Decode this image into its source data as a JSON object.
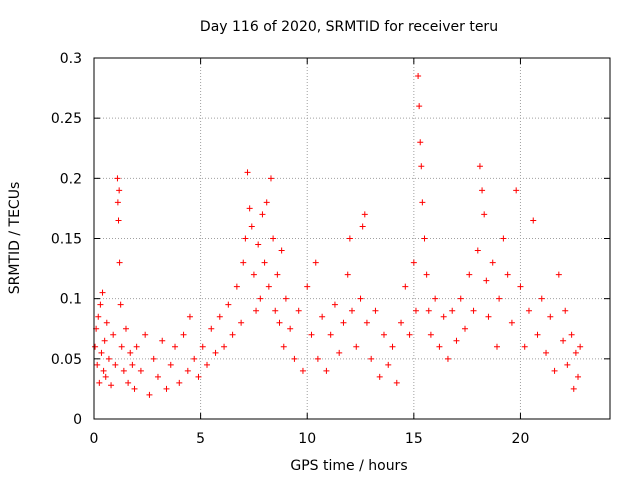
{
  "chart_data": {
    "type": "scatter",
    "title": "Day 116 of 2020, SRMTID for receiver teru",
    "xlabel": "GPS time / hours",
    "ylabel": "SRMTID / TECUs",
    "xlim": [
      0,
      24.2
    ],
    "ylim": [
      0,
      0.3
    ],
    "x_ticks": [
      0,
      5,
      10,
      15,
      20
    ],
    "x_tick_labels": [
      "0",
      "5",
      "10",
      "15",
      "20"
    ],
    "y_ticks": [
      0,
      0.05,
      0.1,
      0.15,
      0.2,
      0.25,
      0.3
    ],
    "y_tick_labels": [
      "0",
      "0.05",
      "0.1",
      "0.15",
      "0.2",
      "0.25",
      "0.3"
    ],
    "grid": true,
    "marker": "+",
    "color": "#ff0000",
    "series": [
      {
        "name": "SRMTID",
        "points": [
          [
            0.05,
            0.06
          ],
          [
            0.1,
            0.075
          ],
          [
            0.15,
            0.045
          ],
          [
            0.2,
            0.085
          ],
          [
            0.25,
            0.03
          ],
          [
            0.3,
            0.095
          ],
          [
            0.35,
            0.055
          ],
          [
            0.4,
            0.105
          ],
          [
            0.45,
            0.04
          ],
          [
            0.5,
            0.065
          ],
          [
            0.55,
            0.035
          ],
          [
            0.6,
            0.08
          ],
          [
            0.7,
            0.05
          ],
          [
            0.8,
            0.028
          ],
          [
            0.9,
            0.07
          ],
          [
            1.0,
            0.045
          ],
          [
            1.1,
            0.2
          ],
          [
            1.12,
            0.18
          ],
          [
            1.15,
            0.165
          ],
          [
            1.18,
            0.19
          ],
          [
            1.2,
            0.13
          ],
          [
            1.25,
            0.095
          ],
          [
            1.3,
            0.06
          ],
          [
            1.4,
            0.04
          ],
          [
            1.5,
            0.075
          ],
          [
            1.6,
            0.03
          ],
          [
            1.7,
            0.055
          ],
          [
            1.8,
            0.045
          ],
          [
            1.9,
            0.025
          ],
          [
            2.0,
            0.06
          ],
          [
            2.2,
            0.04
          ],
          [
            2.4,
            0.07
          ],
          [
            2.6,
            0.02
          ],
          [
            2.8,
            0.05
          ],
          [
            3.0,
            0.035
          ],
          [
            3.2,
            0.065
          ],
          [
            3.4,
            0.025
          ],
          [
            3.6,
            0.045
          ],
          [
            3.8,
            0.06
          ],
          [
            4.0,
            0.03
          ],
          [
            4.2,
            0.07
          ],
          [
            4.4,
            0.04
          ],
          [
            4.5,
            0.085
          ],
          [
            4.7,
            0.05
          ],
          [
            4.9,
            0.035
          ],
          [
            5.1,
            0.06
          ],
          [
            5.3,
            0.045
          ],
          [
            5.5,
            0.075
          ],
          [
            5.7,
            0.055
          ],
          [
            5.9,
            0.085
          ],
          [
            6.1,
            0.06
          ],
          [
            6.3,
            0.095
          ],
          [
            6.5,
            0.07
          ],
          [
            6.7,
            0.11
          ],
          [
            6.9,
            0.08
          ],
          [
            7.0,
            0.13
          ],
          [
            7.1,
            0.15
          ],
          [
            7.2,
            0.205
          ],
          [
            7.3,
            0.175
          ],
          [
            7.4,
            0.16
          ],
          [
            7.5,
            0.12
          ],
          [
            7.6,
            0.09
          ],
          [
            7.7,
            0.145
          ],
          [
            7.8,
            0.1
          ],
          [
            7.9,
            0.17
          ],
          [
            8.0,
            0.13
          ],
          [
            8.1,
            0.18
          ],
          [
            8.2,
            0.11
          ],
          [
            8.3,
            0.2
          ],
          [
            8.4,
            0.15
          ],
          [
            8.5,
            0.09
          ],
          [
            8.6,
            0.12
          ],
          [
            8.7,
            0.08
          ],
          [
            8.8,
            0.14
          ],
          [
            8.9,
            0.06
          ],
          [
            9.0,
            0.1
          ],
          [
            9.2,
            0.075
          ],
          [
            9.4,
            0.05
          ],
          [
            9.6,
            0.09
          ],
          [
            9.8,
            0.04
          ],
          [
            10.0,
            0.11
          ],
          [
            10.2,
            0.07
          ],
          [
            10.4,
            0.13
          ],
          [
            10.5,
            0.05
          ],
          [
            10.7,
            0.085
          ],
          [
            10.9,
            0.04
          ],
          [
            11.1,
            0.07
          ],
          [
            11.3,
            0.095
          ],
          [
            11.5,
            0.055
          ],
          [
            11.7,
            0.08
          ],
          [
            11.9,
            0.12
          ],
          [
            12.0,
            0.15
          ],
          [
            12.1,
            0.09
          ],
          [
            12.3,
            0.06
          ],
          [
            12.5,
            0.1
          ],
          [
            12.6,
            0.16
          ],
          [
            12.7,
            0.17
          ],
          [
            12.8,
            0.08
          ],
          [
            13.0,
            0.05
          ],
          [
            13.2,
            0.09
          ],
          [
            13.4,
            0.035
          ],
          [
            13.6,
            0.07
          ],
          [
            13.8,
            0.045
          ],
          [
            14.0,
            0.06
          ],
          [
            14.2,
            0.03
          ],
          [
            14.4,
            0.08
          ],
          [
            14.6,
            0.11
          ],
          [
            14.8,
            0.07
          ],
          [
            15.0,
            0.13
          ],
          [
            15.1,
            0.09
          ],
          [
            15.2,
            0.285
          ],
          [
            15.25,
            0.26
          ],
          [
            15.3,
            0.23
          ],
          [
            15.35,
            0.21
          ],
          [
            15.4,
            0.18
          ],
          [
            15.5,
            0.15
          ],
          [
            15.6,
            0.12
          ],
          [
            15.7,
            0.09
          ],
          [
            15.8,
            0.07
          ],
          [
            16.0,
            0.1
          ],
          [
            16.2,
            0.06
          ],
          [
            16.4,
            0.085
          ],
          [
            16.6,
            0.05
          ],
          [
            16.8,
            0.09
          ],
          [
            17.0,
            0.065
          ],
          [
            17.2,
            0.1
          ],
          [
            17.4,
            0.075
          ],
          [
            17.6,
            0.12
          ],
          [
            17.8,
            0.09
          ],
          [
            18.0,
            0.14
          ],
          [
            18.1,
            0.21
          ],
          [
            18.2,
            0.19
          ],
          [
            18.3,
            0.17
          ],
          [
            18.4,
            0.115
          ],
          [
            18.5,
            0.085
          ],
          [
            18.7,
            0.13
          ],
          [
            18.9,
            0.06
          ],
          [
            19.0,
            0.1
          ],
          [
            19.2,
            0.15
          ],
          [
            19.4,
            0.12
          ],
          [
            19.6,
            0.08
          ],
          [
            19.8,
            0.19
          ],
          [
            20.0,
            0.11
          ],
          [
            20.2,
            0.06
          ],
          [
            20.4,
            0.09
          ],
          [
            20.6,
            0.165
          ],
          [
            20.8,
            0.07
          ],
          [
            21.0,
            0.1
          ],
          [
            21.2,
            0.055
          ],
          [
            21.4,
            0.085
          ],
          [
            21.6,
            0.04
          ],
          [
            21.8,
            0.12
          ],
          [
            22.0,
            0.065
          ],
          [
            22.1,
            0.09
          ],
          [
            22.2,
            0.045
          ],
          [
            22.4,
            0.07
          ],
          [
            22.5,
            0.025
          ],
          [
            22.6,
            0.055
          ],
          [
            22.7,
            0.035
          ],
          [
            22.8,
            0.06
          ]
        ]
      }
    ]
  }
}
